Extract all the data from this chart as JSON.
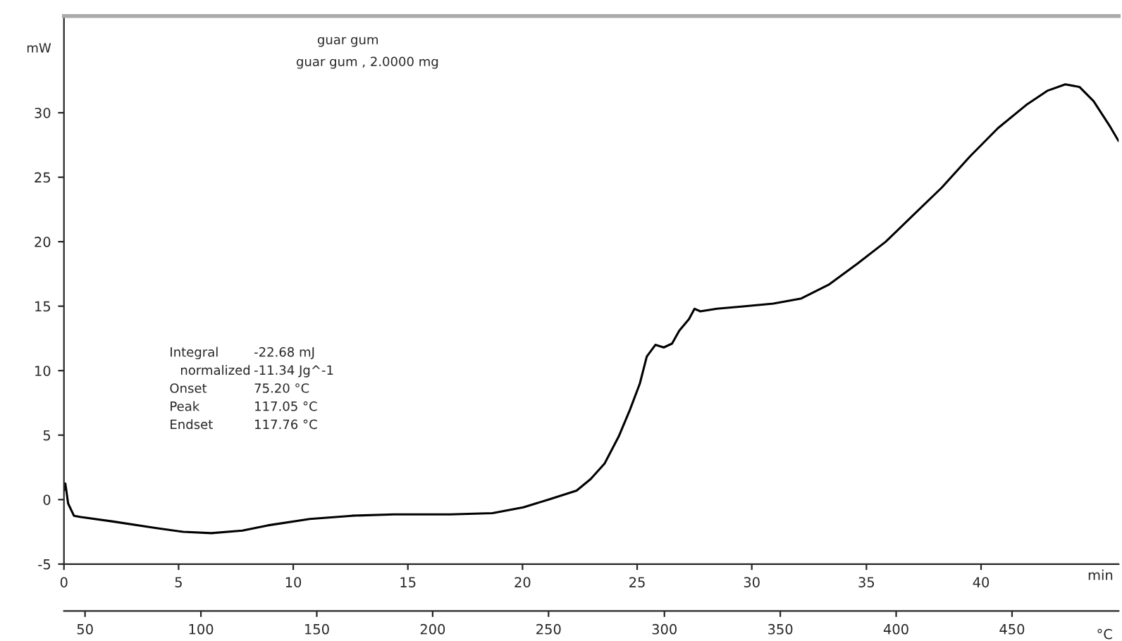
{
  "chart_data": {
    "type": "line",
    "title": "guar gum",
    "subtitle": "guar gum , 2.0000 mg",
    "ylabel": "mW",
    "xlabel": "°C",
    "x2label": "min",
    "x": [
      40.9,
      41.5,
      42.7,
      45.2,
      48.2,
      62.1,
      80.3,
      92.4,
      104.5,
      117.9,
      128.8,
      147,
      165.2,
      183.3,
      207.6,
      225.8,
      239.1,
      250,
      262.1,
      268.2,
      274.2,
      280.3,
      285.2,
      289.4,
      292.4,
      296.1,
      299.7,
      303.3,
      306.4,
      310.6,
      313,
      315.5,
      322.7,
      334.8,
      347,
      359.1,
      371.2,
      383.3,
      395.5,
      407.6,
      419.7,
      431.8,
      443.9,
      456.1,
      465.2,
      473,
      479.1,
      485.2,
      492.4,
      496
    ],
    "series": [
      {
        "color": "#000000",
        "values": [
          0.7,
          1.25,
          -0.3,
          -1.25,
          -1.35,
          -1.7,
          -2.2,
          -2.5,
          -2.6,
          -2.4,
          -2.0,
          -1.5,
          -1.25,
          -1.15,
          -1.15,
          -1.05,
          -0.6,
          0,
          0.7,
          1.6,
          2.8,
          4.9,
          7,
          9,
          11.1,
          12,
          11.8,
          12.1,
          13.1,
          14,
          14.8,
          14.6,
          14.8,
          15,
          15.2,
          15.6,
          16.7,
          18.3,
          20,
          22.1,
          24.2,
          26.6,
          28.8,
          30.6,
          31.7,
          32.2,
          32,
          30.9,
          28.9,
          27.8
        ]
      }
    ],
    "xlim": [
      40.9,
      496
    ],
    "xticks": [
      50,
      100,
      150,
      200,
      250,
      300,
      350,
      400,
      450
    ],
    "x2lim": [
      0,
      46
    ],
    "x2ticks": [
      0,
      5,
      10,
      15,
      20,
      25,
      30,
      35,
      40
    ],
    "ylim": [
      -5,
      37.5
    ],
    "yticks": [
      -5,
      0,
      5,
      10,
      15,
      20,
      25,
      30
    ],
    "annotations": [
      "Integral",
      "-22.68 mJ",
      "normalized",
      "-11.34 Jg^-1",
      "Onset",
      "75.20 °C",
      "Peak",
      "117.05 °C",
      "Endset",
      "117.76 °C"
    ],
    "grid": false,
    "marker": "none",
    "line_style": "solid"
  }
}
